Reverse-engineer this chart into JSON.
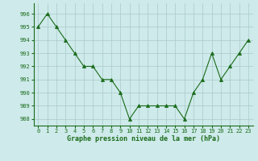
{
  "x": [
    0,
    1,
    2,
    3,
    4,
    5,
    6,
    7,
    8,
    9,
    10,
    11,
    12,
    13,
    14,
    15,
    16,
    17,
    18,
    19,
    20,
    21,
    22,
    23
  ],
  "y": [
    995,
    996,
    995,
    994,
    993,
    992,
    992,
    991,
    991,
    990,
    988,
    989,
    989,
    989,
    989,
    989,
    988,
    990,
    991,
    993,
    991,
    992,
    993,
    994
  ],
  "line_color": "#1a6b1a",
  "marker_color": "#1a6b1a",
  "bg_color": "#ceeaea",
  "grid_color": "#aacaca",
  "xlabel": "Graphe pression niveau de la mer (hPa)",
  "ylim": [
    987.5,
    996.8
  ],
  "yticks": [
    988,
    989,
    990,
    991,
    992,
    993,
    994,
    995,
    996
  ],
  "xticks": [
    0,
    1,
    2,
    3,
    4,
    5,
    6,
    7,
    8,
    9,
    10,
    11,
    12,
    13,
    14,
    15,
    16,
    17,
    18,
    19,
    20,
    21,
    22,
    23
  ],
  "xtick_labels": [
    "0",
    "1",
    "2",
    "3",
    "4",
    "5",
    "6",
    "7",
    "8",
    "9",
    "10",
    "11",
    "12",
    "13",
    "14",
    "15",
    "16",
    "17",
    "18",
    "19",
    "20",
    "21",
    "22",
    "23"
  ]
}
